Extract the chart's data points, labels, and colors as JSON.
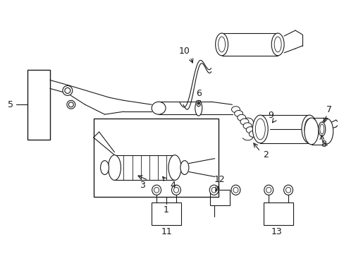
{
  "bg_color": "#ffffff",
  "lc": "#1a1a1a",
  "lw": 0.8,
  "fig_width": 4.89,
  "fig_height": 3.6,
  "dpi": 100
}
